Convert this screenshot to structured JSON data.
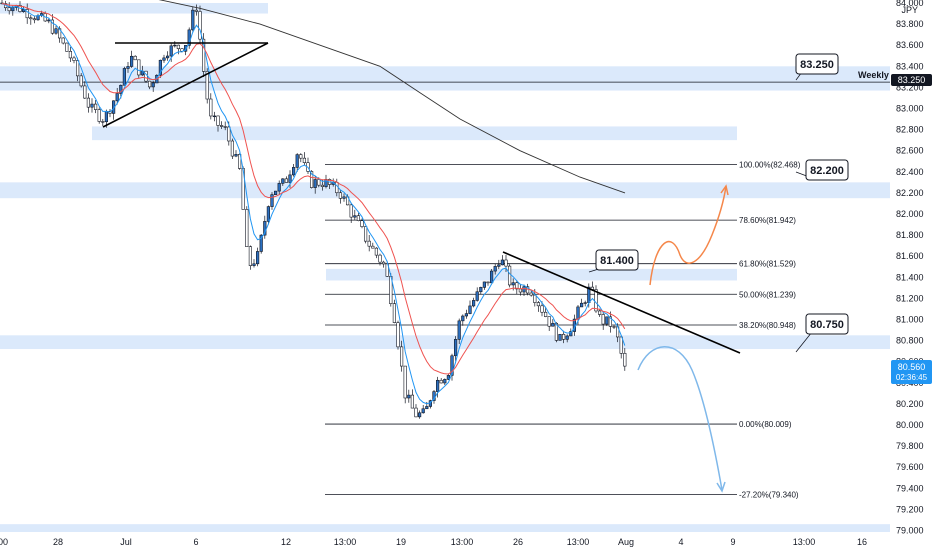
{
  "chart_data": {
    "type": "candlestick",
    "instrument_unit": "JPY",
    "y_axis": {
      "range": [
        78.92,
        84.05
      ],
      "ticks": [
        "84.000",
        "83.800",
        "83.600",
        "83.400",
        "83.200",
        "83.000",
        "82.800",
        "82.600",
        "82.400",
        "82.200",
        "82.000",
        "81.800",
        "81.600",
        "81.400",
        "81.200",
        "81.000",
        "80.800",
        "80.600",
        "80.400",
        "80.200",
        "80.000",
        "79.800",
        "79.600",
        "79.400",
        "79.200",
        "79.000"
      ]
    },
    "x_axis": {
      "labels": [
        "00",
        "28",
        "Jul",
        "6",
        "12",
        "13:00",
        "19",
        "13:00",
        "26",
        "13:00",
        "Aug",
        "4",
        "9",
        "13:00",
        "16"
      ]
    },
    "current_price": {
      "value": "80.560",
      "countdown": "02:36:45",
      "color": "#2196f3"
    },
    "weekly_level": {
      "label": "Weekly",
      "value": "83.250"
    },
    "zones": [
      {
        "y0": 83.9,
        "y1": 84.0
      },
      {
        "y0": 83.17,
        "y1": 83.4
      },
      {
        "y0": 82.7,
        "y1": 82.83
      },
      {
        "y0": 82.15,
        "y1": 82.3
      },
      {
        "y0": 81.37,
        "y1": 81.48
      },
      {
        "y0": 80.72,
        "y1": 80.85
      },
      {
        "y0": 78.98,
        "y1": 79.06
      }
    ],
    "fibonacci": [
      {
        "label": "100.00%(82.468)",
        "price": 82.468
      },
      {
        "label": "78.60%(81.942)",
        "price": 81.942
      },
      {
        "label": "61.80%(81.529)",
        "price": 81.529
      },
      {
        "label": "50.00%(81.239)",
        "price": 81.239
      },
      {
        "label": "38.20%(80.948)",
        "price": 80.948
      },
      {
        "label": "0.00%(80.009)",
        "price": 80.009
      },
      {
        "label": "-27.20%(79.340)",
        "price": 79.34
      }
    ],
    "callouts": [
      {
        "text": "83.250",
        "price": 83.25
      },
      {
        "text": "82.200",
        "price": 82.2
      },
      {
        "text": "81.400",
        "price": 81.4
      },
      {
        "text": "80.750",
        "price": 80.75
      }
    ],
    "colors": {
      "zone": "#dbe9fb",
      "bull_candle": "#2c6fbf",
      "bear_candle": "#ffffff",
      "ma_fast": "#2196f3",
      "ma_slow": "#ef5350",
      "ma_long": "#333333",
      "trendline": "#000000",
      "projection_up": "#f5874a",
      "projection_down": "#7fb8ea"
    }
  }
}
